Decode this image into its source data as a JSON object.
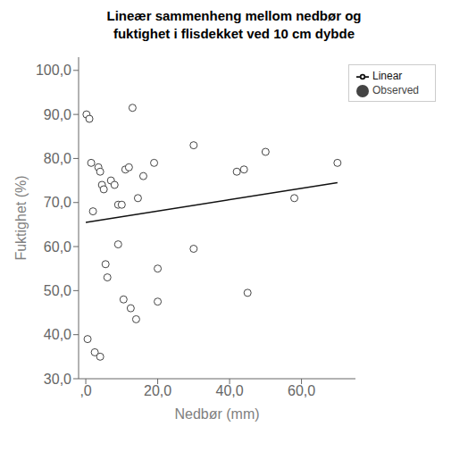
{
  "chart_data": {
    "type": "scatter",
    "title": "Lineær sammenheng mellom nedbør og\nfuktighet i flisdekket ved 10 cm dybde",
    "xlabel": "Nedbør (mm)",
    "ylabel": "Fuktighet (%)",
    "series": [
      {
        "name": "Observed",
        "type": "scatter",
        "color": "#444444",
        "marker": "o",
        "x": [
          0.2,
          1.0,
          1.5,
          2.0,
          3.5,
          4.0,
          4.5,
          5.0,
          5.5,
          6.0,
          7.0,
          8.0,
          9.0,
          10.0,
          11.0,
          12.0,
          13.0,
          14.5,
          16.0,
          19.0,
          20.0,
          30.0,
          30.0,
          42.0,
          45.0,
          50.0,
          58.0,
          70.0,
          0.5,
          2.5,
          4.0,
          9.0,
          10.5,
          12.5,
          14.0,
          20.0,
          44.0
        ],
        "values": [
          90.0,
          89.0,
          79.0,
          68.0,
          78.0,
          77.0,
          74.0,
          73.0,
          56.0,
          53.0,
          75.0,
          74.0,
          69.5,
          69.5,
          77.5,
          78.0,
          91.5,
          71.0,
          76.0,
          79.0,
          55.0,
          83.0,
          59.5,
          77.0,
          49.5,
          81.5,
          71.0,
          79.0,
          39.0,
          36.0,
          35.0,
          60.5,
          48.0,
          46.0,
          43.5,
          47.5,
          77.5
        ]
      },
      {
        "name": "Linear",
        "type": "line",
        "color": "#111111",
        "line_style": "solid",
        "x": [
          0,
          70
        ],
        "values": [
          65.5,
          74.5
        ]
      }
    ],
    "xlim": [
      -2,
      75
    ],
    "ylim": [
      30,
      103
    ],
    "xticks": [
      {
        "value": 0,
        "label": ",0"
      },
      {
        "value": 20,
        "label": "20,0"
      },
      {
        "value": 40,
        "label": "40,0"
      },
      {
        "value": 60,
        "label": "60,0"
      }
    ],
    "yticks": [
      {
        "value": 30,
        "label": "30,0"
      },
      {
        "value": 40,
        "label": "40,0"
      },
      {
        "value": 50,
        "label": "50,0"
      },
      {
        "value": 60,
        "label": "60,0"
      },
      {
        "value": 70,
        "label": "70,0"
      },
      {
        "value": 80,
        "label": "80,0"
      },
      {
        "value": 90,
        "label": "90,0"
      },
      {
        "value": 100,
        "label": "100,0"
      }
    ],
    "grid": false,
    "legend": "upper right"
  }
}
